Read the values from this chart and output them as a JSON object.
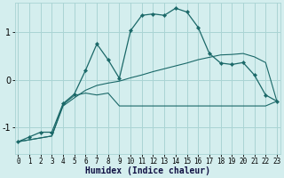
{
  "xlabel": "Humidex (Indice chaleur)",
  "bg_color": "#d4eeee",
  "grid_color": "#aad4d4",
  "line_color": "#1a6868",
  "xlim": [
    -0.3,
    23.3
  ],
  "ylim": [
    -1.55,
    1.62
  ],
  "yticks": [
    -1,
    0,
    1
  ],
  "xticks": [
    0,
    1,
    2,
    3,
    4,
    5,
    6,
    7,
    8,
    9,
    10,
    11,
    12,
    13,
    14,
    15,
    16,
    17,
    18,
    19,
    20,
    21,
    22,
    23
  ],
  "s1x": [
    0,
    1,
    2,
    3,
    4,
    5,
    6,
    7,
    8,
    9,
    10,
    11,
    12,
    13,
    14,
    15,
    16,
    17,
    18,
    19,
    20,
    21,
    22,
    23
  ],
  "s1y": [
    -1.3,
    -1.2,
    -1.1,
    -1.1,
    -0.5,
    -0.3,
    0.2,
    0.75,
    0.42,
    0.03,
    1.03,
    1.35,
    1.38,
    1.35,
    1.5,
    1.42,
    1.1,
    0.55,
    0.35,
    0.32,
    0.36,
    0.1,
    -0.32,
    -0.45
  ],
  "s2x": [
    0,
    3,
    4,
    5,
    6,
    7,
    8,
    9,
    10,
    14,
    21,
    22,
    23
  ],
  "s2y": [
    -1.3,
    -1.18,
    -0.52,
    -0.33,
    -0.28,
    -0.32,
    -0.28,
    -0.55,
    -0.55,
    -0.55,
    -0.55,
    -0.55,
    -0.45
  ],
  "s3x": [
    0,
    3,
    4,
    5,
    6,
    7,
    8,
    9,
    10,
    11,
    12,
    13,
    14,
    15,
    16,
    17,
    18,
    19,
    20,
    21,
    22,
    23
  ],
  "s3y": [
    -1.3,
    -1.18,
    -0.55,
    -0.38,
    -0.22,
    -0.12,
    -0.07,
    -0.03,
    0.04,
    0.1,
    0.17,
    0.23,
    0.29,
    0.35,
    0.42,
    0.47,
    0.52,
    0.53,
    0.55,
    0.48,
    0.36,
    -0.45
  ]
}
